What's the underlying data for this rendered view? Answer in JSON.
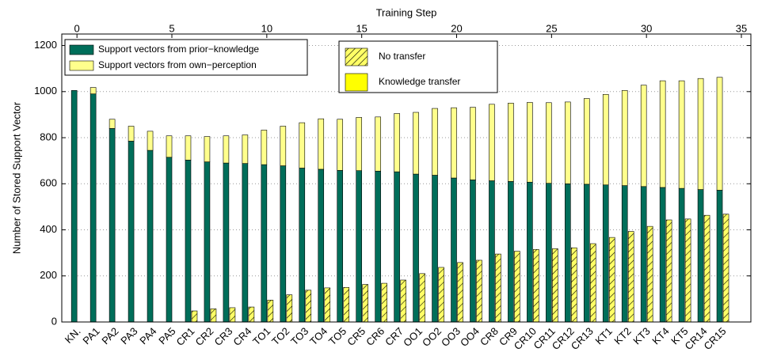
{
  "chart_data": {
    "type": "bar",
    "xlabel": "Training Step",
    "ylabel": "Number of Stored Support Vector",
    "categories": [
      "KN.",
      "PA1",
      "PA2",
      "PA3",
      "PA4",
      "PA5",
      "CR1",
      "CR2",
      "CR3",
      "CR4",
      "TO1",
      "TO2",
      "TO3",
      "TO4",
      "TO5",
      "CR5",
      "CR6",
      "CR7",
      "OO1",
      "OO2",
      "OO3",
      "OO4",
      "CR8",
      "CR9",
      "CR10",
      "CR11",
      "CR12",
      "CR13",
      "KT1",
      "KT2",
      "KT3",
      "KT4",
      "KT5",
      "CR14",
      "CR15"
    ],
    "x": [
      0,
      1,
      2,
      3,
      4,
      5,
      6,
      7,
      8,
      9,
      10,
      11,
      12,
      13,
      14,
      15,
      16,
      17,
      18,
      19,
      20,
      21,
      22,
      23,
      24,
      25,
      26,
      27,
      28,
      29,
      30,
      31,
      32,
      33,
      34
    ],
    "series": [
      {
        "name": "Support vectors from prior−knowledge",
        "color": "#006e5a",
        "stack": "transfer",
        "values": [
          1005,
          990,
          840,
          785,
          745,
          715,
          703,
          695,
          690,
          688,
          683,
          678,
          668,
          663,
          658,
          657,
          655,
          652,
          642,
          637,
          625,
          617,
          613,
          610,
          607,
          602,
          600,
          598,
          595,
          592,
          588,
          584,
          580,
          575,
          572
        ]
      },
      {
        "name": "Support vectors from own−perception",
        "color": "#ffff8c",
        "stack": "transfer",
        "values": [
          0,
          28,
          40,
          65,
          83,
          93,
          105,
          110,
          118,
          124,
          150,
          172,
          197,
          219,
          222,
          231,
          235,
          253,
          268,
          290,
          305,
          315,
          332,
          340,
          346,
          350,
          355,
          372,
          393,
          413,
          440,
          463,
          467,
          482,
          490
        ]
      },
      {
        "name": "No transfer",
        "color": "#ffff66",
        "hatch": true,
        "stack": "none",
        "values": [
          0,
          0,
          0,
          0,
          0,
          0,
          48,
          57,
          62,
          65,
          95,
          118,
          138,
          148,
          150,
          163,
          168,
          182,
          210,
          237,
          258,
          268,
          295,
          307,
          315,
          318,
          322,
          340,
          367,
          393,
          415,
          443,
          447,
          463,
          468
        ]
      }
    ],
    "extra_legend": {
      "label": "Knowledge transfer",
      "color": "#ffff00"
    },
    "xlim": [
      -0.8,
      35.5
    ],
    "xticks": [
      0,
      5,
      10,
      15,
      20,
      25,
      30,
      35
    ],
    "ylim": [
      0,
      1250
    ],
    "yticks": [
      0,
      200,
      400,
      600,
      800,
      1000,
      1200
    ],
    "grid": true
  }
}
